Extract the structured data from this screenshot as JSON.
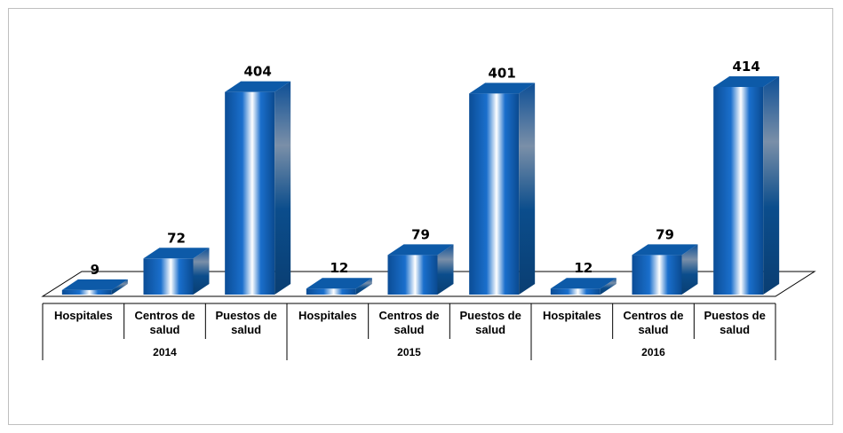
{
  "chart_data": {
    "type": "bar",
    "groups": [
      {
        "year": "2014",
        "categories": [
          "Hospitales",
          "Centros de salud",
          "Puestos de salud"
        ],
        "values": [
          9,
          72,
          404
        ]
      },
      {
        "year": "2015",
        "categories": [
          "Hospitales",
          "Centros de salud",
          "Puestos de salud"
        ],
        "values": [
          12,
          79,
          401
        ]
      },
      {
        "year": "2016",
        "categories": [
          "Hospitales",
          "Centros de salud",
          "Puestos de salud"
        ],
        "values": [
          12,
          79,
          414
        ]
      }
    ],
    "ylim": [
      0,
      414
    ],
    "colors": {
      "bar_dark": "#0a4f9a",
      "bar_main": "#1565c0",
      "bar_top": "#0d5aa8",
      "bar_side": "#0b3f7a",
      "highlight": "#ffffff"
    }
  }
}
